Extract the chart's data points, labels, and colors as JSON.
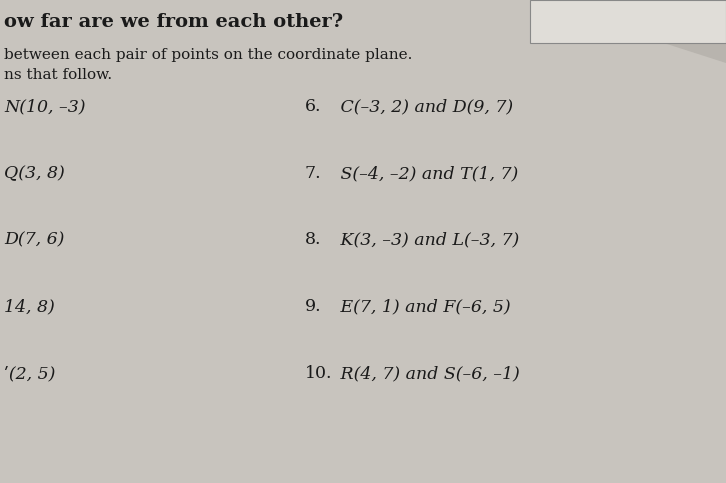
{
  "bg_color": "#c8c4be",
  "paper_color": "#d8d4ce",
  "title_line": "ow far are we from each other?",
  "subtitle1": "between each pair of points on the coordinate plane.",
  "subtitle2": "ns that follow.",
  "left_column": [
    "N(10, –3)",
    "Q(3, 8)",
    "D(7, 6)",
    "14, 8)",
    "ʹ(2, 5)"
  ],
  "right_column": [
    [
      "6.",
      " C(–3, 2) and D(9, 7)"
    ],
    [
      "7.",
      " S(–4, –2) and T(1, 7)"
    ],
    [
      "8.",
      " K(3, –3) and L(–3, 7)"
    ],
    [
      "9.",
      " E(7, 1) and F(–6, 5)"
    ],
    [
      "10.",
      " R(4, 7) and S(–6, –1)"
    ]
  ],
  "title_fontsize": 14,
  "subtitle_fontsize": 11,
  "body_fontsize": 12.5,
  "text_color": "#1a1a1a"
}
